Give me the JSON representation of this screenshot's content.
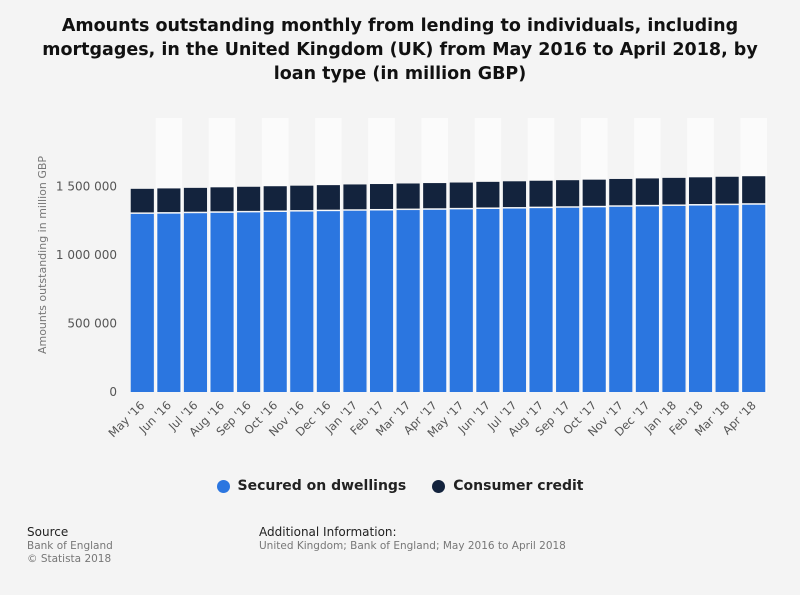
{
  "title": "Amounts outstanding monthly from lending to individuals, including mortgages, in the United Kingdom (UK) from May 2016 to April 2018, by loan type (in million GBP)",
  "colors": {
    "secured": "#2b76e0",
    "consumer": "#13233d",
    "band": "#fbfbfb",
    "background": "#f4f4f4"
  },
  "legend": {
    "secured_label": "Secured on dwellings",
    "consumer_label": "Consumer credit"
  },
  "footer": {
    "source_head": "Source",
    "source_line1": "Bank of England",
    "source_line2": "© Statista 2018",
    "info_head": "Additional Information:",
    "info_line": "United Kingdom; Bank of England; May 2016 to April 2018"
  },
  "chart_data": {
    "type": "bar",
    "stacked": true,
    "title": "Amounts outstanding monthly from lending to individuals, including mortgages, in the United Kingdom (UK) from May 2016 to April 2018, by loan type (in million GBP)",
    "xlabel": "",
    "ylabel": "Amounts outstanding in million GBP",
    "ylim": [
      0,
      2000000
    ],
    "yticks": [
      0,
      500000,
      1000000,
      1500000
    ],
    "ytick_labels": [
      "0",
      "500 000",
      "1 000 000",
      "1 500 000"
    ],
    "grid": false,
    "legend_position": "bottom",
    "categories": [
      "May '16",
      "Jun '16",
      "Jul '16",
      "Aug '16",
      "Sep '16",
      "Oct '16",
      "Nov '16",
      "Dec '16",
      "Jan '17",
      "Feb '17",
      "Mar '17",
      "Apr '17",
      "May '17",
      "Jun '17",
      "Jul '17",
      "Aug '17",
      "Sep '17",
      "Oct '17",
      "Nov '17",
      "Dec '17",
      "Jan '18",
      "Feb '18",
      "Mar '18",
      "Apr '18"
    ],
    "series": [
      {
        "name": "Secured on dwellings",
        "values": [
          1300000,
          1302000,
          1305000,
          1308000,
          1311000,
          1314000,
          1317000,
          1320000,
          1323000,
          1325000,
          1328000,
          1330000,
          1333000,
          1336000,
          1339000,
          1342000,
          1345000,
          1348000,
          1352000,
          1355000,
          1358000,
          1361000,
          1364000,
          1367000
        ]
      },
      {
        "name": "Consumer credit",
        "values": [
          183000,
          184000,
          185000,
          186000,
          187000,
          188000,
          189000,
          190000,
          192000,
          193000,
          194000,
          195000,
          196000,
          198000,
          199000,
          200000,
          201000,
          202000,
          203000,
          204000,
          205000,
          206000,
          207000,
          208000
        ]
      }
    ]
  }
}
